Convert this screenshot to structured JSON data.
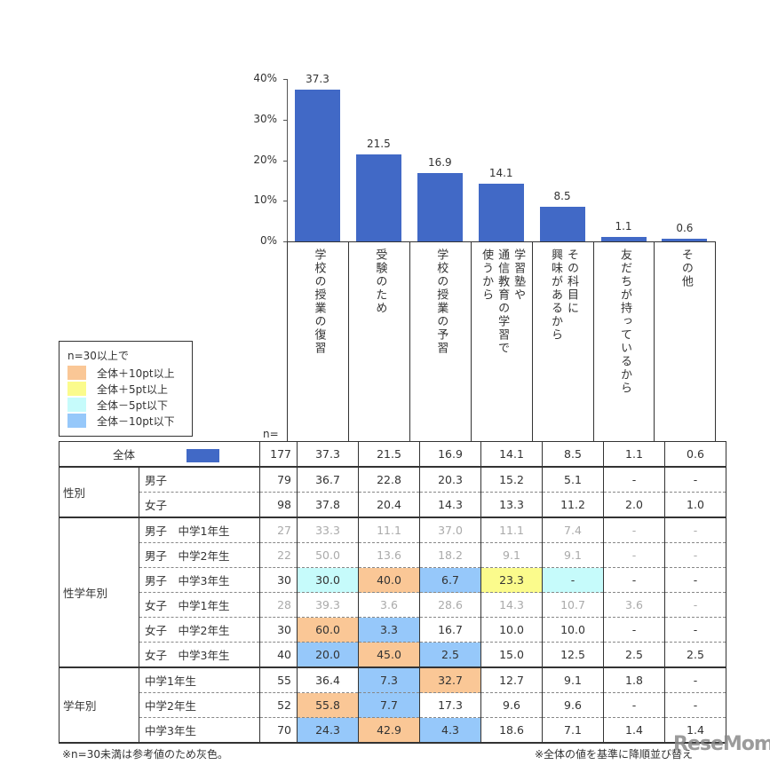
{
  "chart_data": {
    "type": "bar",
    "title": "",
    "xlabel": "",
    "ylabel": "",
    "ylim": [
      0,
      40
    ],
    "yticks": [
      "0%",
      "10%",
      "20%",
      "30%",
      "40%"
    ],
    "categories": [
      "学校の授業の復習",
      "受験のため",
      "学校の授業の予習",
      "学習塾や通信教育の学習で使うから",
      "その科目に興味があるから",
      "友だちが持っているから",
      "その他"
    ],
    "values": [
      37.3,
      21.5,
      16.9,
      14.1,
      8.5,
      1.1,
      0.6
    ],
    "value_labels": [
      "37.3",
      "21.5",
      "16.9",
      "14.1",
      "8.5",
      "1.1",
      "0.6"
    ],
    "bar_color": "#4169c6",
    "grid": false,
    "legend": {
      "title": "n=30以上で",
      "items": [
        {
          "label": "全体＋10pt以上",
          "color": "#fac796"
        },
        {
          "label": "全体＋5pt以上",
          "color": "#fbfb8c"
        },
        {
          "label": "全体－5pt以下",
          "color": "#c6fbfb"
        },
        {
          "label": "全体－10pt以下",
          "color": "#96c8fa"
        }
      ]
    }
  },
  "category_labels_vertical": [
    [
      "学校の授業の復習"
    ],
    [
      "受験のため"
    ],
    [
      "学校の授業の予習"
    ],
    [
      "学習塾や",
      "通信教育の学習で",
      "使うから"
    ],
    [
      "その科目に",
      "興味があるから"
    ],
    [
      "友だちが持っているから"
    ],
    [
      "その他"
    ]
  ],
  "table": {
    "n_header": "n=",
    "total": {
      "label": "全体",
      "n": "177",
      "values": [
        "37.3",
        "21.5",
        "16.9",
        "14.1",
        "8.5",
        "1.1",
        "0.6"
      ]
    },
    "groups": [
      {
        "label": "性別",
        "rows": [
          {
            "label": "男子",
            "n": "79",
            "gray": false,
            "values": [
              "36.7",
              "22.8",
              "20.3",
              "15.2",
              "5.1",
              "-",
              "-"
            ],
            "colors": [
              "",
              "",
              "",
              "",
              "",
              "",
              ""
            ]
          },
          {
            "label": "女子",
            "n": "98",
            "gray": false,
            "values": [
              "37.8",
              "20.4",
              "14.3",
              "13.3",
              "11.2",
              "2.0",
              "1.0"
            ],
            "colors": [
              "",
              "",
              "",
              "",
              "",
              "",
              ""
            ]
          }
        ]
      },
      {
        "label": "性学年別",
        "rows": [
          {
            "label": "男子　中学1年生",
            "n": "27",
            "gray": true,
            "values": [
              "33.3",
              "11.1",
              "37.0",
              "11.1",
              "7.4",
              "-",
              "-"
            ],
            "colors": [
              "",
              "",
              "",
              "",
              "",
              "",
              ""
            ]
          },
          {
            "label": "男子　中学2年生",
            "n": "22",
            "gray": true,
            "values": [
              "50.0",
              "13.6",
              "18.2",
              "9.1",
              "9.1",
              "-",
              "-"
            ],
            "colors": [
              "",
              "",
              "",
              "",
              "",
              "",
              ""
            ]
          },
          {
            "label": "男子　中学3年生",
            "n": "30",
            "gray": false,
            "values": [
              "30.0",
              "40.0",
              "6.7",
              "23.3",
              "-",
              "-",
              "-"
            ],
            "colors": [
              "cyan",
              "orange",
              "blue",
              "yellow",
              "cyan",
              "",
              ""
            ]
          },
          {
            "label": "女子　中学1年生",
            "n": "28",
            "gray": true,
            "values": [
              "39.3",
              "3.6",
              "28.6",
              "14.3",
              "10.7",
              "3.6",
              "-"
            ],
            "colors": [
              "",
              "",
              "",
              "",
              "",
              "",
              ""
            ]
          },
          {
            "label": "女子　中学2年生",
            "n": "30",
            "gray": false,
            "values": [
              "60.0",
              "3.3",
              "16.7",
              "10.0",
              "10.0",
              "-",
              "-"
            ],
            "colors": [
              "orange",
              "blue",
              "",
              "",
              "",
              "",
              ""
            ]
          },
          {
            "label": "女子　中学3年生",
            "n": "40",
            "gray": false,
            "values": [
              "20.0",
              "45.0",
              "2.5",
              "15.0",
              "12.5",
              "2.5",
              "2.5"
            ],
            "colors": [
              "blue",
              "orange",
              "blue",
              "",
              "",
              "",
              ""
            ]
          }
        ]
      },
      {
        "label": "学年別",
        "rows": [
          {
            "label": "中学1年生",
            "n": "55",
            "gray": false,
            "values": [
              "36.4",
              "7.3",
              "32.7",
              "12.7",
              "9.1",
              "1.8",
              "-"
            ],
            "colors": [
              "",
              "blue",
              "orange",
              "",
              "",
              "",
              ""
            ]
          },
          {
            "label": "中学2年生",
            "n": "52",
            "gray": false,
            "values": [
              "55.8",
              "7.7",
              "17.3",
              "9.6",
              "9.6",
              "-",
              "-"
            ],
            "colors": [
              "orange",
              "blue",
              "",
              "",
              "",
              "",
              ""
            ]
          },
          {
            "label": "中学3年生",
            "n": "70",
            "gray": false,
            "values": [
              "24.3",
              "42.9",
              "4.3",
              "18.6",
              "7.1",
              "1.4",
              "1.4"
            ],
            "colors": [
              "blue",
              "orange",
              "blue",
              "",
              "",
              "",
              ""
            ]
          }
        ]
      }
    ]
  },
  "footnotes": {
    "left": "※n=30未満は参考値のため灰色。",
    "right": "※全体の値を基準に降順並び替え"
  },
  "watermark": "ReseMom"
}
